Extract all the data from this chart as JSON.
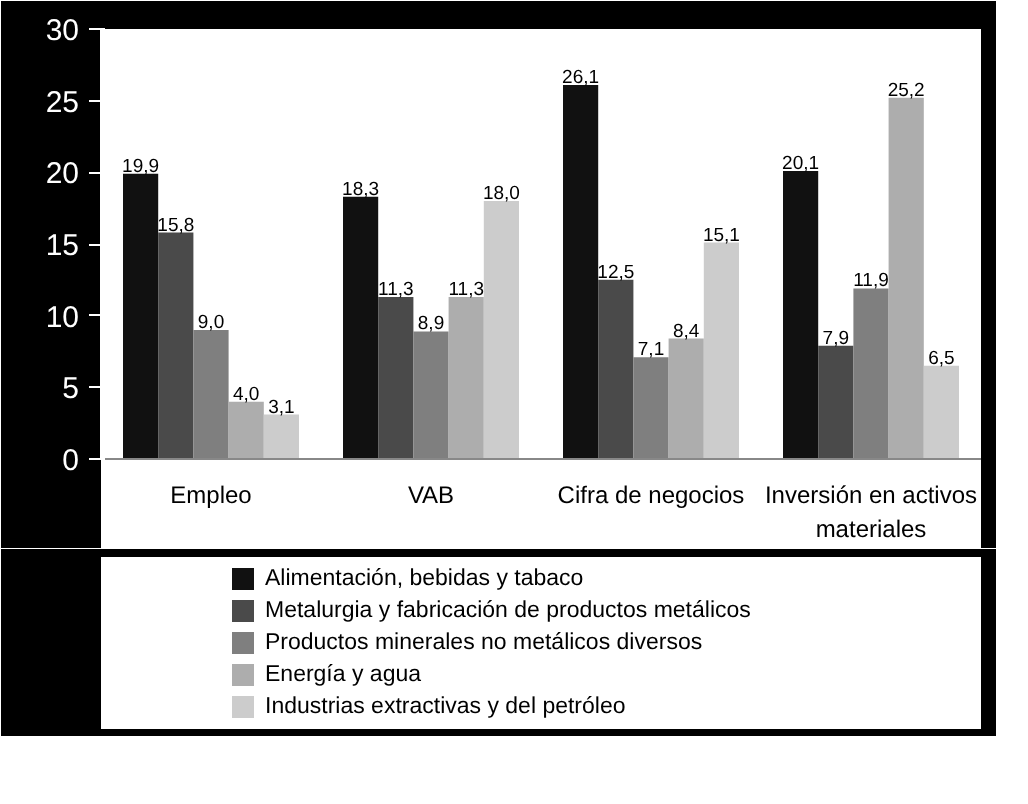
{
  "chart_data": {
    "type": "bar",
    "categories": [
      "Empleo",
      "VAB",
      "Cifra de negocios",
      "Inversión en activos materiales"
    ],
    "series": [
      {
        "name": "Alimentación, bebidas y tabaco",
        "color": "#111111",
        "values": [
          19.9,
          18.3,
          26.1,
          20.1
        ],
        "value_labels": [
          "19,9",
          "18,3",
          "26,1",
          "20,1"
        ]
      },
      {
        "name": "Metalurgia y fabricación de productos metálicos",
        "color": "#4a4a4a",
        "values": [
          15.8,
          11.3,
          12.5,
          7.9
        ],
        "value_labels": [
          "15,8",
          "11,3",
          "12,5",
          "7,9"
        ]
      },
      {
        "name": "Productos minerales no metálicos diversos",
        "color": "#7f7f7f",
        "values": [
          9.0,
          8.9,
          7.1,
          11.9
        ],
        "value_labels": [
          "9,0",
          "8,9",
          "7,1",
          "11,9"
        ]
      },
      {
        "name": "Energía y agua",
        "color": "#adadad",
        "values": [
          4.0,
          11.3,
          8.4,
          25.2
        ],
        "value_labels": [
          "4,0",
          "11,3",
          "8,4",
          "25,2"
        ]
      },
      {
        "name": "Industrias extractivas y del petróleo",
        "color": "#cccccc",
        "values": [
          3.1,
          18.0,
          15.1,
          6.5
        ],
        "value_labels": [
          "3,1",
          "18,0",
          "15,1",
          "6,5"
        ]
      }
    ],
    "ylim": [
      0,
      30
    ],
    "yticks": [
      0,
      5,
      10,
      15,
      20,
      25,
      30
    ],
    "grid": false,
    "legend": "bottom"
  }
}
